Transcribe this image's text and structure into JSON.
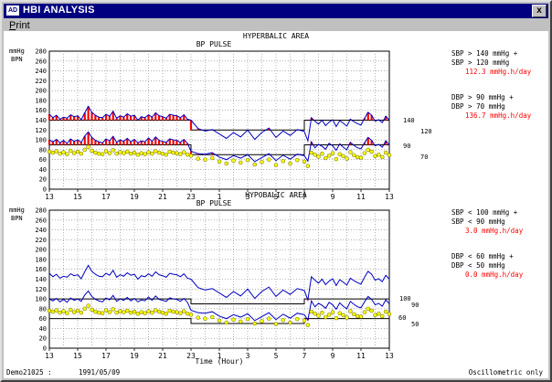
{
  "window": {
    "title": "HBI ANALYSIS",
    "icon_text": "AD",
    "close_glyph": "x"
  },
  "menu": {
    "print_underlined": "P",
    "print_rest": "rint"
  },
  "upper": {
    "title": "HYPERBALIC AREA",
    "subtitle": "BP  PULSE",
    "ylabel_line1": "mmHg",
    "ylabel_line2": "BPN",
    "yticks": [
      0,
      20,
      40,
      60,
      80,
      100,
      120,
      140,
      160,
      180,
      200,
      220,
      240,
      260,
      280
    ],
    "limit_labels": [
      "140",
      "120",
      "90",
      "70"
    ],
    "sbp_lines": [
      "SBP >  140 mmHg +",
      "SBP >  120 mmHg"
    ],
    "sbp_value": "112.3 mmHg.h/day",
    "dbp_lines": [
      "DBP >   90 mmHg +",
      "DBP >   70 mmHg"
    ],
    "dbp_value": "136.7 mmHg.h/day"
  },
  "lower": {
    "title": "HYPOBALIC AREA",
    "subtitle": "BP  PULSE",
    "ylabel_line1": "mmHg",
    "ylabel_line2": "BPN",
    "yticks": [
      0,
      20,
      40,
      60,
      80,
      100,
      120,
      140,
      160,
      180,
      200,
      220,
      240,
      260,
      280
    ],
    "limit_labels": [
      "100",
      "90",
      "60",
      "50"
    ],
    "sbp_lines": [
      "SBP <  100 mmHg +",
      "SBP <   90 mmHg"
    ],
    "sbp_value": "3.0 mmHg.h/day",
    "dbp_lines": [
      "DBP <   60 mmHg +",
      "DBP <   50 mmHg"
    ],
    "dbp_value": "0.0 mmHg.h/day"
  },
  "xticks": [
    "13",
    "15",
    "17",
    "19",
    "21",
    "23",
    "1",
    "3",
    "5",
    "7",
    "9",
    "11",
    "13"
  ],
  "xlabel": "Time (Hour)",
  "footer": {
    "patient_id": "Demo21025 :",
    "date": "1991/05/09",
    "mode": "Oscillometric only"
  },
  "colors": {
    "sbp_line": "#0000c0",
    "bar_fill": "#ff0000",
    "dot_fill": "#ffff00",
    "value_text": "#ff0000"
  },
  "chart_data": [
    {
      "type": "line",
      "title": "HYPERBALIC AREA",
      "x_hours": [
        13,
        13.25,
        13.5,
        13.75,
        14,
        14.25,
        14.5,
        14.75,
        15,
        15.25,
        15.5,
        15.75,
        16,
        16.25,
        16.5,
        16.75,
        17,
        17.25,
        17.5,
        17.75,
        18,
        18.25,
        18.5,
        18.75,
        19,
        19.25,
        19.5,
        19.75,
        20,
        20.25,
        20.5,
        20.75,
        21,
        21.25,
        21.5,
        21.75,
        22,
        22.25,
        22.5,
        22.75,
        23,
        23.5,
        24,
        24.5,
        25,
        25.5,
        26,
        26.5,
        27,
        27.5,
        28,
        28.5,
        29,
        29.5,
        30,
        30.5,
        31,
        31.25,
        31.5,
        31.75,
        32,
        32.25,
        32.5,
        32.75,
        33,
        33.25,
        33.5,
        33.75,
        34,
        34.25,
        34.5,
        34.75,
        35,
        35.25,
        35.5,
        35.75,
        36,
        36.25,
        36.5,
        36.75,
        37
      ],
      "systolic": [
        152,
        145,
        150,
        142,
        146,
        144,
        151,
        147,
        149,
        141,
        155,
        168,
        156,
        150,
        146,
        145,
        152,
        148,
        158,
        144,
        149,
        146,
        153,
        148,
        150,
        140,
        147,
        145,
        151,
        146,
        155,
        149,
        147,
        144,
        152,
        150,
        149,
        145,
        151,
        142,
        140,
        123,
        118,
        121,
        112,
        103,
        115,
        106,
        120,
        101,
        115,
        124,
        105,
        118,
        109,
        121,
        117,
        98,
        145,
        138,
        132,
        140,
        129,
        136,
        141,
        127,
        139,
        134,
        128,
        142,
        137,
        133,
        130,
        144,
        156,
        150,
        138,
        141,
        135,
        148,
        140
      ],
      "diastolic": [
        100,
        96,
        101,
        94,
        99,
        93,
        102,
        97,
        100,
        95,
        108,
        116,
        105,
        99,
        96,
        94,
        102,
        98,
        107,
        95,
        100,
        97,
        103,
        96,
        101,
        94,
        98,
        96,
        104,
        97,
        106,
        99,
        97,
        95,
        102,
        100,
        99,
        95,
        101,
        93,
        77,
        72,
        71,
        74,
        65,
        60,
        68,
        63,
        70,
        56,
        64,
        72,
        58,
        69,
        61,
        71,
        68,
        57,
        96,
        84,
        91,
        87,
        81,
        93,
        88,
        79,
        92,
        85,
        80,
        95,
        89,
        84,
        82,
        94,
        105,
        99,
        88,
        91,
        85,
        98,
        90
      ],
      "pulse": [
        76,
        74,
        77,
        72,
        75,
        71,
        78,
        73,
        76,
        72,
        80,
        86,
        78,
        74,
        72,
        71,
        77,
        73,
        79,
        72,
        75,
        73,
        76,
        72,
        74,
        70,
        73,
        71,
        75,
        72,
        77,
        74,
        72,
        70,
        76,
        74,
        73,
        71,
        75,
        70,
        68,
        62,
        60,
        63,
        56,
        52,
        58,
        54,
        59,
        50,
        55,
        60,
        49,
        57,
        52,
        59,
        56,
        47,
        74,
        70,
        66,
        72,
        63,
        68,
        73,
        61,
        71,
        67,
        62,
        75,
        69,
        65,
        64,
        73,
        80,
        76,
        67,
        70,
        65,
        74,
        69
      ],
      "ylim": [
        0,
        280
      ],
      "thresholds": {
        "sbp_plus": 140,
        "sbp": 120,
        "dbp_plus": 90,
        "dbp": 70
      },
      "ylabel": "mmHg BPN",
      "xlabel": "Time (Hour)"
    },
    {
      "type": "line",
      "title": "HYPOBALIC AREA",
      "x_hours": [
        13,
        13.25,
        13.5,
        13.75,
        14,
        14.25,
        14.5,
        14.75,
        15,
        15.25,
        15.5,
        15.75,
        16,
        16.25,
        16.5,
        16.75,
        17,
        17.25,
        17.5,
        17.75,
        18,
        18.25,
        18.5,
        18.75,
        19,
        19.25,
        19.5,
        19.75,
        20,
        20.25,
        20.5,
        20.75,
        21,
        21.25,
        21.5,
        21.75,
        22,
        22.25,
        22.5,
        22.75,
        23,
        23.5,
        24,
        24.5,
        25,
        25.5,
        26,
        26.5,
        27,
        27.5,
        28,
        28.5,
        29,
        29.5,
        30,
        30.5,
        31,
        31.25,
        31.5,
        31.75,
        32,
        32.25,
        32.5,
        32.75,
        33,
        33.25,
        33.5,
        33.75,
        34,
        34.25,
        34.5,
        34.75,
        35,
        35.25,
        35.5,
        35.75,
        36,
        36.25,
        36.5,
        36.75,
        37
      ],
      "systolic": [
        152,
        145,
        150,
        142,
        146,
        144,
        151,
        147,
        149,
        141,
        155,
        168,
        156,
        150,
        146,
        145,
        152,
        148,
        158,
        144,
        149,
        146,
        153,
        148,
        150,
        140,
        147,
        145,
        151,
        146,
        155,
        149,
        147,
        144,
        152,
        150,
        149,
        145,
        151,
        142,
        140,
        123,
        118,
        121,
        112,
        103,
        115,
        106,
        120,
        101,
        115,
        124,
        105,
        118,
        109,
        121,
        117,
        98,
        145,
        138,
        132,
        140,
        129,
        136,
        141,
        127,
        139,
        134,
        128,
        142,
        137,
        133,
        130,
        144,
        156,
        150,
        138,
        141,
        135,
        148,
        140
      ],
      "diastolic": [
        100,
        96,
        101,
        94,
        99,
        93,
        102,
        97,
        100,
        95,
        108,
        116,
        105,
        99,
        96,
        94,
        102,
        98,
        107,
        95,
        100,
        97,
        103,
        96,
        101,
        94,
        98,
        96,
        104,
        97,
        106,
        99,
        97,
        95,
        102,
        100,
        99,
        95,
        101,
        93,
        77,
        72,
        71,
        74,
        65,
        60,
        68,
        63,
        70,
        56,
        64,
        72,
        58,
        69,
        61,
        71,
        68,
        57,
        96,
        84,
        91,
        87,
        81,
        93,
        88,
        79,
        92,
        85,
        80,
        95,
        89,
        84,
        82,
        94,
        105,
        99,
        88,
        91,
        85,
        98,
        90
      ],
      "pulse": [
        76,
        74,
        77,
        72,
        75,
        71,
        78,
        73,
        76,
        72,
        80,
        86,
        78,
        74,
        72,
        71,
        77,
        73,
        79,
        72,
        75,
        73,
        76,
        72,
        74,
        70,
        73,
        71,
        75,
        72,
        77,
        74,
        72,
        70,
        76,
        74,
        73,
        71,
        75,
        70,
        68,
        62,
        60,
        63,
        56,
        52,
        58,
        54,
        59,
        50,
        55,
        60,
        49,
        57,
        52,
        59,
        56,
        47,
        74,
        70,
        66,
        72,
        63,
        68,
        73,
        61,
        71,
        67,
        62,
        75,
        69,
        65,
        64,
        73,
        80,
        76,
        67,
        70,
        65,
        74,
        69
      ],
      "ylim": [
        0,
        280
      ],
      "thresholds": {
        "sbp_plus": 100,
        "sbp": 90,
        "dbp_plus": 60,
        "dbp": 50
      },
      "ylabel": "mmHg BPN",
      "xlabel": "Time (Hour)"
    }
  ]
}
